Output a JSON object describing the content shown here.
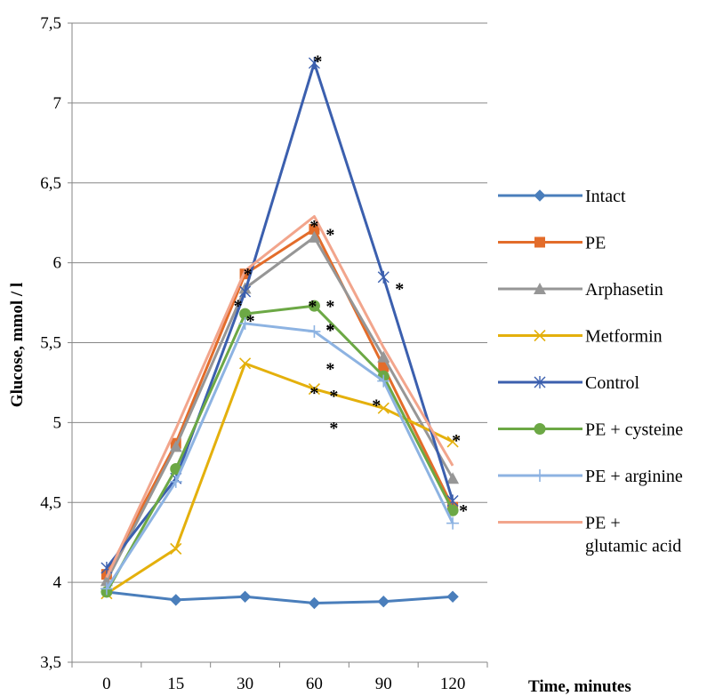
{
  "chart_data": {
    "type": "line",
    "categories": [
      "0",
      "15",
      "30",
      "60",
      "90",
      "120"
    ],
    "ylim": [
      3.5,
      7.5
    ],
    "yticks": [
      "3,5",
      "4",
      "4,5",
      "5",
      "5,5",
      "6",
      "6,5",
      "7",
      "7,5"
    ],
    "ytick_values": [
      3.5,
      4,
      4.5,
      5,
      5.5,
      6,
      6.5,
      7,
      7.5
    ],
    "ylabel": "Glucose, mmol / l",
    "xlabel": "Time, minutes",
    "grid": "horizontal",
    "legend_position": "right",
    "series": [
      {
        "name": "Intact",
        "color": "#4a7ebb",
        "marker": "diamond",
        "values": [
          3.94,
          3.89,
          3.91,
          3.87,
          3.88,
          3.91
        ]
      },
      {
        "name": "PE",
        "color": "#e36c2a",
        "marker": "square",
        "values": [
          4.05,
          4.87,
          5.93,
          6.21,
          5.35,
          4.47
        ]
      },
      {
        "name": "Arphasetin",
        "color": "#969696",
        "marker": "triangle",
        "values": [
          4.01,
          4.85,
          5.84,
          6.16,
          5.41,
          4.65
        ]
      },
      {
        "name": "Metformin",
        "color": "#e4b00c",
        "marker": "x",
        "values": [
          3.93,
          4.21,
          5.37,
          5.21,
          5.09,
          4.88
        ]
      },
      {
        "name": "Control",
        "color": "#3b5fae",
        "marker": "star",
        "values": [
          4.09,
          4.65,
          5.82,
          7.25,
          5.91,
          4.51
        ]
      },
      {
        "name": "PE + cysteine",
        "color": "#6ca845",
        "marker": "circle",
        "values": [
          3.94,
          4.71,
          5.68,
          5.73,
          5.29,
          4.45
        ]
      },
      {
        "name": "PE + arginine",
        "color": "#8db3e2",
        "marker": "plus",
        "values": [
          3.96,
          4.63,
          5.62,
          5.57,
          5.26,
          4.37
        ]
      },
      {
        "name": "PE + glutamic acid",
        "color": "#f2a58c",
        "marker": "none",
        "values": [
          4.03,
          4.96,
          5.95,
          6.29,
          5.47,
          4.73
        ]
      }
    ],
    "annotations": [
      {
        "text": "*",
        "x": "30",
        "y": 5.97
      },
      {
        "text": "*",
        "x": "30",
        "y": 5.84
      },
      {
        "text": "*",
        "x": "30",
        "y": 5.7
      },
      {
        "text": "*",
        "x": "60",
        "y": 7.29
      },
      {
        "text": "*",
        "x": "60",
        "y": 6.27
      },
      {
        "text": "*",
        "x": "60",
        "y": 6.24
      },
      {
        "text": "*",
        "x": "60",
        "y": 5.77
      },
      {
        "text": "*",
        "x": "60",
        "y": 5.77
      },
      {
        "text": "*",
        "x": "60",
        "y": 5.62
      },
      {
        "text": "*",
        "x": "60",
        "y": 5.6
      },
      {
        "text": "*",
        "x": "60",
        "y": 5.4
      },
      {
        "text": "*",
        "x": "60",
        "y": 5.25
      },
      {
        "text": "*",
        "x": "60",
        "y": 5.23
      },
      {
        "text": "*",
        "x": "60",
        "y": 5.03
      },
      {
        "text": "*",
        "x": "90",
        "y": 5.9
      },
      {
        "text": "*",
        "x": "90",
        "y": 5.15
      },
      {
        "text": "*",
        "x": "120",
        "y": 4.93
      },
      {
        "text": "*",
        "x": "120",
        "y": 4.49
      }
    ]
  }
}
